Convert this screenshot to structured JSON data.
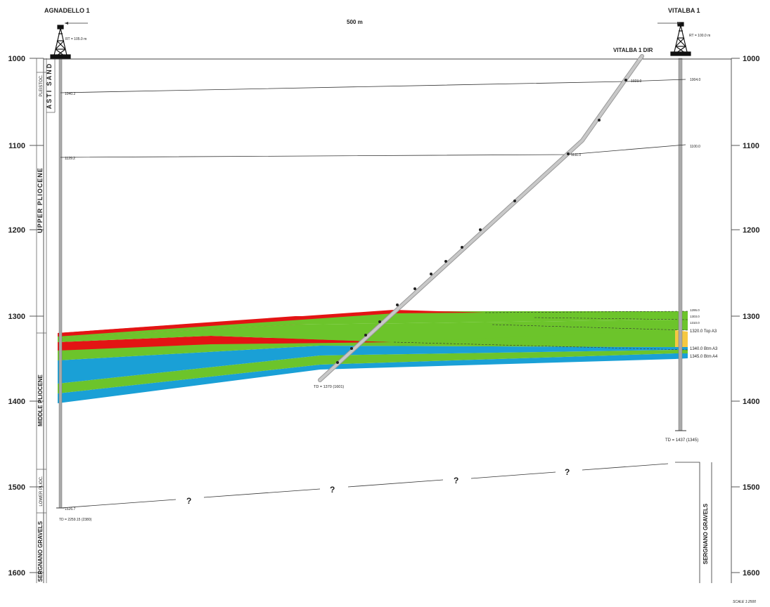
{
  "wells": {
    "left": {
      "name": "AGNADELLO 1",
      "rt": "RT = 105.0 m",
      "td": "TD = 2259.15 (2380)",
      "base_value": "1526.7",
      "pick_1": "1040.2",
      "pick_2": "1129.2"
    },
    "right": {
      "name": "VITALBA 1",
      "rt": "RT = 100.0 m",
      "td": "TD = 1437 (1345)",
      "pick_1": "1004.0",
      "pick_2": "1100.0"
    },
    "deviated": {
      "name": "VITALBA 1 DIR",
      "td": "TD = 1370 (1601)",
      "pick_1": "1023.0",
      "pick_2": "1111.0"
    }
  },
  "distance_label": "500 m",
  "depth_axis": {
    "ticks": [
      "1000",
      "1100",
      "1200",
      "1300",
      "1400",
      "1500",
      "1600"
    ]
  },
  "stratigraphy_left": {
    "formation": "ASTI SAND",
    "upper": "UPPER PLIOCENE",
    "pleisto": "PLEISTOC.",
    "middle": "MIDDLE PLIOCENE",
    "lower": "LOWER PLIOC.",
    "gravels": "SERGNANO GRAVELS"
  },
  "stratigraphy_right": {
    "gravels": "SERGNANO GRAVELS"
  },
  "right_markers": [
    "1295.0",
    "1303.0",
    "1310.0",
    "1320.0 Top A3",
    "1340.0 Btm A3",
    "1345.0 Btm A4"
  ],
  "unknown_mark": "?",
  "scale_label": "SCALE 1:2500",
  "colors": {
    "red": "#e31414",
    "green": "#6cc42b",
    "blue": "#1aa0d6",
    "yellow": "#f5c842"
  }
}
